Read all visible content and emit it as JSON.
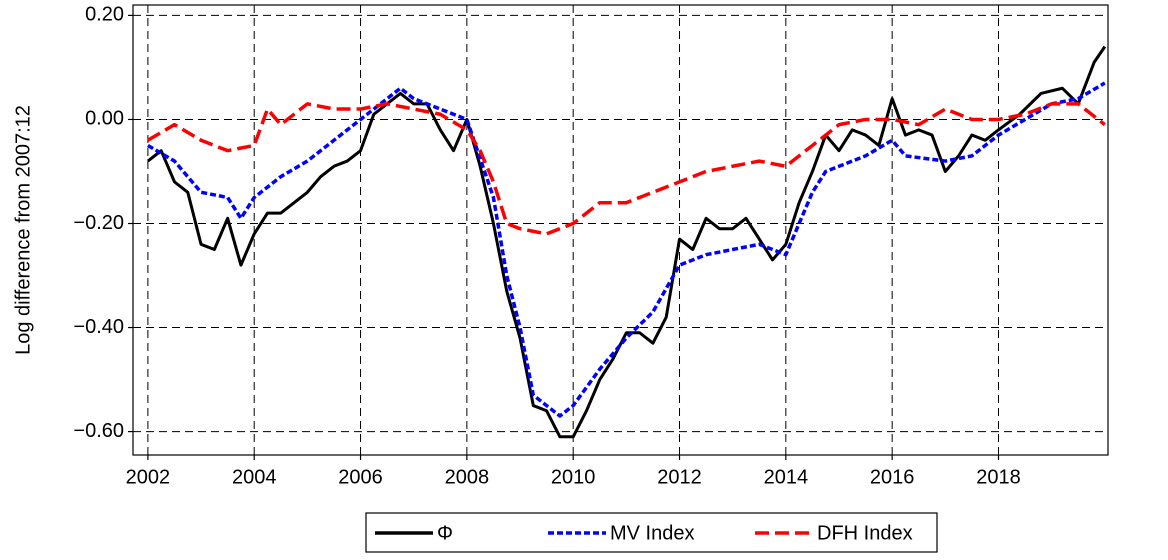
{
  "chart_data": {
    "type": "line",
    "y_label": "Log difference from 2007:12",
    "xlim": [
      2001.72,
      2020.06
    ],
    "xticks": [
      2002,
      2004,
      2006,
      2008,
      2010,
      2012,
      2014,
      2016,
      2018
    ],
    "ylim": [
      -0.645,
      0.22
    ],
    "yticks": [
      {
        "value": 0.2,
        "label": "0.20"
      },
      {
        "value": 0,
        "label": "0.00"
      },
      {
        "value": -0.2,
        "label": "−0.20"
      },
      {
        "value": -0.4,
        "label": "−0.40"
      },
      {
        "value": -0.6,
        "label": "−0.60"
      }
    ],
    "grid": true,
    "legend": "bottom",
    "series": [
      {
        "name": "Φ",
        "color": "#000000",
        "x": [
          2002,
          2002.25,
          2002.5,
          2002.75,
          2003,
          2003.25,
          2003.5,
          2003.75,
          2004,
          2004.25,
          2004.5,
          2004.75,
          2005,
          2005.25,
          2005.5,
          2005.75,
          2006,
          2006.25,
          2006.5,
          2006.75,
          2007,
          2007.25,
          2007.5,
          2007.75,
          2008,
          2008.25,
          2008.5,
          2008.75,
          2009,
          2009.25,
          2009.5,
          2009.75,
          2010,
          2010.25,
          2010.5,
          2010.75,
          2011,
          2011.25,
          2011.5,
          2011.75,
          2012,
          2012.25,
          2012.5,
          2012.75,
          2013,
          2013.25,
          2013.5,
          2013.75,
          2014,
          2014.25,
          2014.5,
          2014.75,
          2015,
          2015.25,
          2015.5,
          2015.75,
          2016,
          2016.25,
          2016.5,
          2016.75,
          2017,
          2017.25,
          2017.5,
          2017.75,
          2018,
          2018.4,
          2018.8,
          2019.2,
          2019.5,
          2019.8,
          2020
        ],
        "values": [
          -0.08,
          -0.06,
          -0.12,
          -0.14,
          -0.24,
          -0.25,
          -0.19,
          -0.28,
          -0.22,
          -0.18,
          -0.18,
          -0.16,
          -0.14,
          -0.11,
          -0.09,
          -0.08,
          -0.06,
          0.01,
          0.03,
          0.05,
          0.03,
          0.03,
          -0.02,
          -0.06,
          0.0,
          -0.09,
          -0.2,
          -0.33,
          -0.42,
          -0.55,
          -0.56,
          -0.61,
          -0.61,
          -0.56,
          -0.5,
          -0.46,
          -0.41,
          -0.41,
          -0.43,
          -0.38,
          -0.23,
          -0.25,
          -0.19,
          -0.21,
          -0.21,
          -0.19,
          -0.23,
          -0.27,
          -0.24,
          -0.16,
          -0.1,
          -0.03,
          -0.06,
          -0.02,
          -0.03,
          -0.05,
          0.04,
          -0.03,
          -0.02,
          -0.03,
          -0.1,
          -0.07,
          -0.03,
          -0.04,
          -0.02,
          0.01,
          0.05,
          0.06,
          0.03,
          0.11,
          0.14
        ]
      },
      {
        "name": "MV Index",
        "color": "#0000ff",
        "x": [
          2002,
          2002.5,
          2003,
          2003.5,
          2003.75,
          2004,
          2004.5,
          2005,
          2005.5,
          2006,
          2006.5,
          2006.75,
          2007,
          2007.5,
          2008,
          2008.5,
          2008.75,
          2009,
          2009.25,
          2009.75,
          2010,
          2010.5,
          2011,
          2011.5,
          2012,
          2012.5,
          2013,
          2013.5,
          2014,
          2014.5,
          2014.75,
          2015,
          2015.5,
          2016,
          2016.25,
          2017,
          2017.5,
          2018,
          2018.5,
          2019,
          2019.5,
          2020
        ],
        "values": [
          -0.05,
          -0.08,
          -0.14,
          -0.15,
          -0.19,
          -0.15,
          -0.11,
          -0.08,
          -0.04,
          0.0,
          0.04,
          0.06,
          0.04,
          0.02,
          0.0,
          -0.15,
          -0.3,
          -0.4,
          -0.53,
          -0.57,
          -0.55,
          -0.48,
          -0.42,
          -0.37,
          -0.28,
          -0.26,
          -0.25,
          -0.24,
          -0.26,
          -0.14,
          -0.1,
          -0.09,
          -0.07,
          -0.04,
          -0.07,
          -0.08,
          -0.07,
          -0.03,
          0.0,
          0.03,
          0.04,
          0.07
        ]
      },
      {
        "name": "DFH Index",
        "color": "#ff0000",
        "x": [
          2002,
          2002.5,
          2003,
          2003.5,
          2004,
          2004.25,
          2004.5,
          2005,
          2005.5,
          2006,
          2006.5,
          2007,
          2007.5,
          2008,
          2008.25,
          2008.5,
          2008.75,
          2009,
          2009.5,
          2010,
          2010.5,
          2011,
          2011.5,
          2012,
          2012.5,
          2013,
          2013.5,
          2014,
          2014.5,
          2015,
          2015.5,
          2016,
          2016.5,
          2017,
          2017.5,
          2018,
          2018.5,
          2019,
          2019.5,
          2020
        ],
        "values": [
          -0.04,
          -0.01,
          -0.04,
          -0.06,
          -0.05,
          0.02,
          -0.01,
          0.03,
          0.02,
          0.02,
          0.03,
          0.02,
          0.01,
          -0.02,
          -0.06,
          -0.12,
          -0.2,
          -0.21,
          -0.22,
          -0.2,
          -0.16,
          -0.16,
          -0.14,
          -0.12,
          -0.1,
          -0.09,
          -0.08,
          -0.09,
          -0.05,
          -0.01,
          0.0,
          0.0,
          -0.01,
          0.02,
          0.0,
          0.0,
          0.01,
          0.03,
          0.03,
          -0.01
        ]
      }
    ]
  }
}
